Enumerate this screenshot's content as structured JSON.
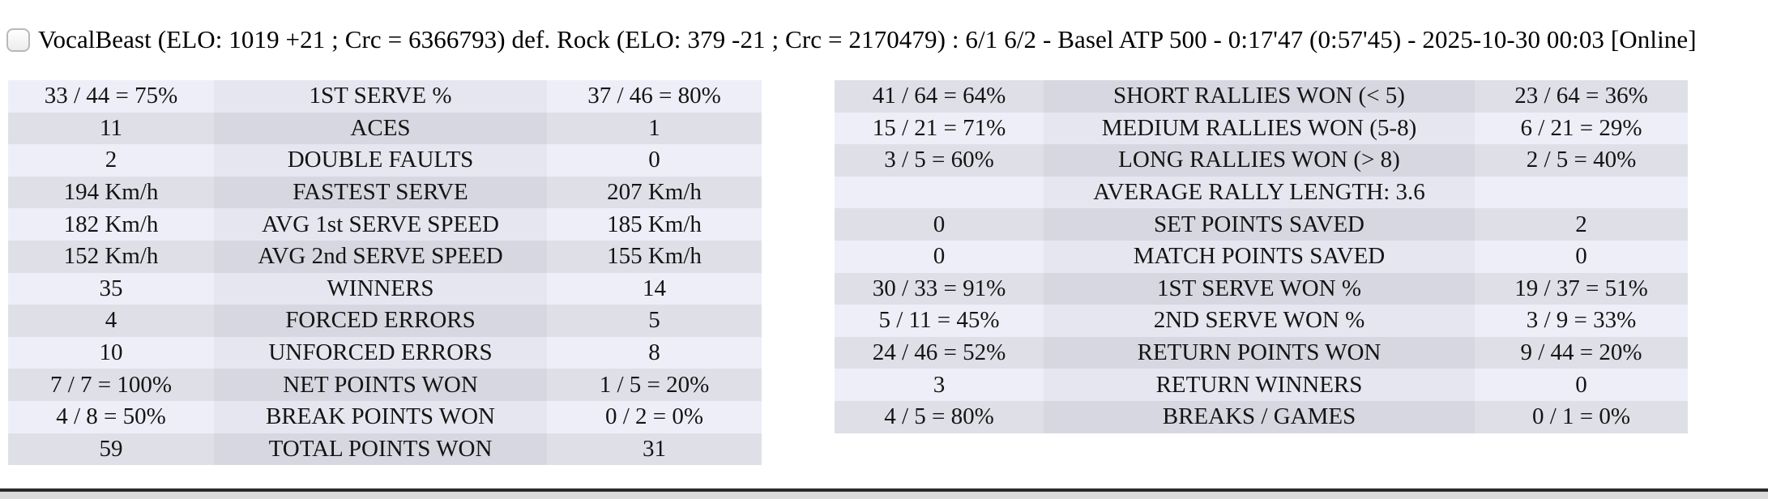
{
  "header": {
    "checkbox_checked": false,
    "title": "VocalBeast (ELO: 1019 +21 ; Crc = 6366793) def. Rock (ELO: 379 -21 ; Crc = 2170479) : 6/1 6/2 - Basel ATP 500 - 0:17'47 (0:57'45) - 2025-10-30 00:03 [Online]"
  },
  "colors": {
    "page_bg": "#ffffff",
    "row_light_side": "#eeeef8",
    "row_light_mid": "#e6e6f0",
    "row_dark_side": "#dfdfe8",
    "row_dark_mid": "#d7d7e1",
    "table_text": "#141414",
    "divider_dark": "#2a2a2a",
    "bottom_panel": "#dadada"
  },
  "stats_tables": [
    {
      "id": "serve-points-stats",
      "first_row_shade": "light",
      "rows": [
        {
          "p1": "33 / 44 = 75%",
          "label": "1ST SERVE %",
          "p2": "37 / 46 = 80%"
        },
        {
          "p1": "11",
          "label": "ACES",
          "p2": "1"
        },
        {
          "p1": "2",
          "label": "DOUBLE FAULTS",
          "p2": "0"
        },
        {
          "p1": "194 Km/h",
          "label": "FASTEST SERVE",
          "p2": "207 Km/h"
        },
        {
          "p1": "182 Km/h",
          "label": "AVG 1st SERVE SPEED",
          "p2": "185 Km/h"
        },
        {
          "p1": "152 Km/h",
          "label": "AVG 2nd SERVE SPEED",
          "p2": "155 Km/h"
        },
        {
          "p1": "35",
          "label": "WINNERS",
          "p2": "14"
        },
        {
          "p1": "4",
          "label": "FORCED ERRORS",
          "p2": "5"
        },
        {
          "p1": "10",
          "label": "UNFORCED ERRORS",
          "p2": "8"
        },
        {
          "p1": "7 / 7 = 100%",
          "label": "NET POINTS WON",
          "p2": "1 / 5 = 20%"
        },
        {
          "p1": "4 / 8 = 50%",
          "label": "BREAK POINTS WON",
          "p2": "0 / 2 = 0%"
        },
        {
          "p1": "59",
          "label": "TOTAL POINTS WON",
          "p2": "31"
        }
      ]
    },
    {
      "id": "rally-return-stats",
      "first_row_shade": "dark",
      "rows": [
        {
          "p1": "41 / 64 = 64%",
          "label": "SHORT RALLIES WON (< 5)",
          "p2": "23 / 64 = 36%"
        },
        {
          "p1": "15 / 21 = 71%",
          "label": "MEDIUM RALLIES WON (5-8)",
          "p2": "6 / 21 = 29%"
        },
        {
          "p1": "3 / 5 = 60%",
          "label": "LONG RALLIES WON (> 8)",
          "p2": "2 / 5 = 40%"
        },
        {
          "p1": "",
          "label": "AVERAGE RALLY LENGTH: 3.6",
          "p2": ""
        },
        {
          "p1": "0",
          "label": "SET POINTS SAVED",
          "p2": "2"
        },
        {
          "p1": "0",
          "label": "MATCH POINTS SAVED",
          "p2": "0"
        },
        {
          "p1": "30 / 33 = 91%",
          "label": "1ST SERVE WON %",
          "p2": "19 / 37 = 51%"
        },
        {
          "p1": "5 / 11 = 45%",
          "label": "2ND SERVE WON %",
          "p2": "3 / 9 = 33%"
        },
        {
          "p1": "24 / 46 = 52%",
          "label": "RETURN POINTS WON",
          "p2": "9 / 44 = 20%"
        },
        {
          "p1": "3",
          "label": "RETURN WINNERS",
          "p2": "0"
        },
        {
          "p1": "4 / 5 = 80%",
          "label": "BREAKS / GAMES",
          "p2": "0 / 1 = 0%"
        }
      ]
    }
  ]
}
